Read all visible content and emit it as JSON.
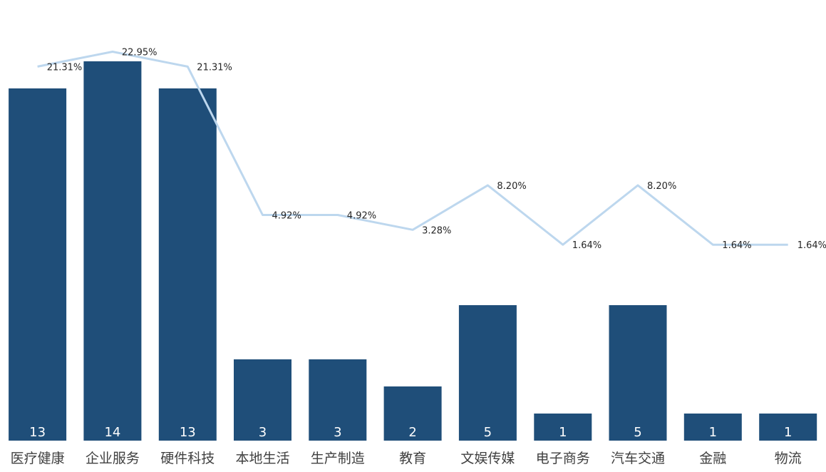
{
  "chart_data": {
    "type": "bar",
    "categories": [
      "医疗健康",
      "企业服务",
      "硬件科技",
      "本地生活",
      "生产制造",
      "教育",
      "文娱传媒",
      "电子商务",
      "汽车交通",
      "金融",
      "物流"
    ],
    "series": [
      {
        "type": "bar",
        "values": [
          13,
          14,
          13,
          3,
          3,
          2,
          5,
          1,
          5,
          1,
          1
        ],
        "value_labels": [
          "13",
          "14",
          "13",
          "3",
          "3",
          "2",
          "5",
          "1",
          "5",
          "1",
          "1"
        ],
        "color": "#1f4e79"
      },
      {
        "type": "line",
        "values": [
          21.31,
          22.95,
          21.31,
          4.92,
          4.92,
          3.28,
          8.2,
          1.64,
          8.2,
          1.64,
          1.64
        ],
        "value_labels": [
          "21.31%",
          "22.95%",
          "21.31%",
          "4.92%",
          "4.92%",
          "3.28%",
          "8.20%",
          "1.64%",
          "8.20%",
          "1.64%",
          "1.64%"
        ],
        "color": "#bdd7ee"
      }
    ],
    "title": "",
    "xlabel": "",
    "ylabel": "",
    "grid": false,
    "legend": "none"
  }
}
